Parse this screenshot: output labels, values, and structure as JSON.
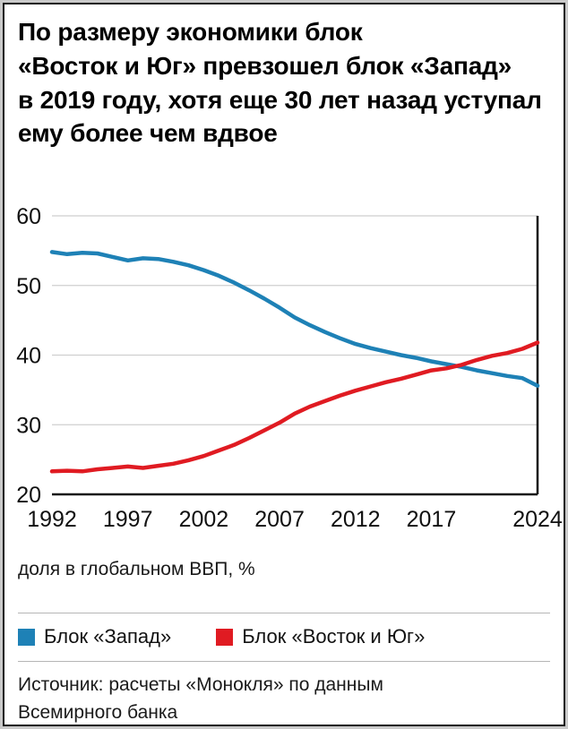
{
  "title_lines": [
    "По размеру экономики блок",
    "«Восток и Юг» превзошел блок «Запад»",
    "в 2019 году, хотя еще 30 лет назад уступал",
    "ему более чем вдвое"
  ],
  "axis_caption": "доля в глобальном ВВП, %",
  "source_lines": [
    "Источник: расчеты «Монокля» по данным",
    "Всемирного банка"
  ],
  "chart_data": {
    "type": "line",
    "title": "По размеру экономики блок «Восток и Юг» превзошел блок «Запад» в 2019 году, хотя еще 30 лет назад уступал ему более чем вдвое",
    "ylabel": "доля в глобальном ВВП, %",
    "ylim": [
      20,
      60
    ],
    "yticks": [
      20,
      30,
      40,
      50,
      60
    ],
    "xticks": [
      1992,
      1997,
      2002,
      2007,
      2012,
      2017,
      2024
    ],
    "grid": true,
    "legend_position": "bottom",
    "x": [
      1992,
      1993,
      1994,
      1995,
      1996,
      1997,
      1998,
      1999,
      2000,
      2001,
      2002,
      2003,
      2004,
      2005,
      2006,
      2007,
      2008,
      2009,
      2010,
      2011,
      2012,
      2013,
      2014,
      2015,
      2016,
      2017,
      2018,
      2019,
      2020,
      2021,
      2022,
      2023,
      2024
    ],
    "series": [
      {
        "name": "Блок «Запад»",
        "color": "#1e81b6",
        "values": [
          54.8,
          54.5,
          54.7,
          54.6,
          54.1,
          53.6,
          53.9,
          53.8,
          53.4,
          52.9,
          52.2,
          51.4,
          50.4,
          49.3,
          48.1,
          46.8,
          45.4,
          44.3,
          43.3,
          42.4,
          41.6,
          41.0,
          40.5,
          40.0,
          39.6,
          39.1,
          38.7,
          38.3,
          37.8,
          37.4,
          37.0,
          36.7,
          35.6
        ]
      },
      {
        "name": "Блок «Восток и Юг»",
        "color": "#e01b22",
        "values": [
          23.3,
          23.4,
          23.3,
          23.6,
          23.8,
          24.0,
          23.8,
          24.1,
          24.4,
          24.9,
          25.5,
          26.3,
          27.1,
          28.1,
          29.2,
          30.3,
          31.6,
          32.6,
          33.4,
          34.2,
          34.9,
          35.5,
          36.1,
          36.6,
          37.2,
          37.8,
          38.1,
          38.6,
          39.3,
          39.9,
          40.3,
          40.9,
          41.8
        ]
      }
    ]
  }
}
